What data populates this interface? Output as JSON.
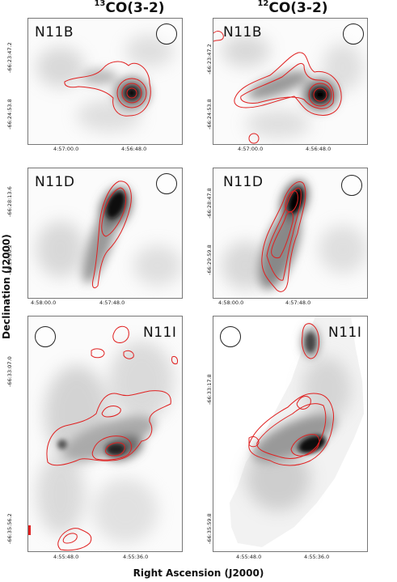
{
  "column_titles": [
    {
      "iso": "13",
      "text": "CO(3-2)"
    },
    {
      "iso": "12",
      "text": "CO(3-2)"
    }
  ],
  "axis_labels": {
    "y": "Declination (J2000)",
    "x": "Right Ascension (J2000)"
  },
  "panels": [
    {
      "id": "n11b-13",
      "name": "N11B",
      "x_ticks": [
        "4:57:00.0",
        "4:56:48.0"
      ],
      "y_ticks": [
        "-66:23:47.2",
        "-66:24:53.8"
      ]
    },
    {
      "id": "n11b-12",
      "name": "N11B",
      "x_ticks": [
        "4:57:00.0",
        "4:56:48.0"
      ],
      "y_ticks": [
        "-66:23:47.2",
        "-66:24:53.8"
      ]
    },
    {
      "id": "n11d-13",
      "name": "N11D",
      "x_ticks": [
        "4:58:00.0",
        "4:57:48.0"
      ],
      "y_ticks": [
        "-66:28:13.6",
        "-66:29:20.2"
      ]
    },
    {
      "id": "n11d-12",
      "name": "N11D",
      "x_ticks": [
        "4:58:00.0",
        "4:57:48.0"
      ],
      "y_ticks": [
        "-66:28:47.8",
        "-66:29:59.8"
      ]
    },
    {
      "id": "n11i-13",
      "name": "N11I",
      "x_ticks": [
        "4:55:48.0",
        "4:55:36.0"
      ],
      "y_ticks": [
        "-66:33:07.0",
        "-66:35:56.2"
      ]
    },
    {
      "id": "n11i-12",
      "name": "N11I",
      "x_ticks": [
        "4:55:48.0",
        "4:55:36.0"
      ],
      "y_ticks": [
        "-66:33:17.8",
        "-66:35:59.8"
      ]
    }
  ],
  "colors": {
    "contour": "#e02020",
    "emission": "#111111",
    "frame": "#777777"
  }
}
